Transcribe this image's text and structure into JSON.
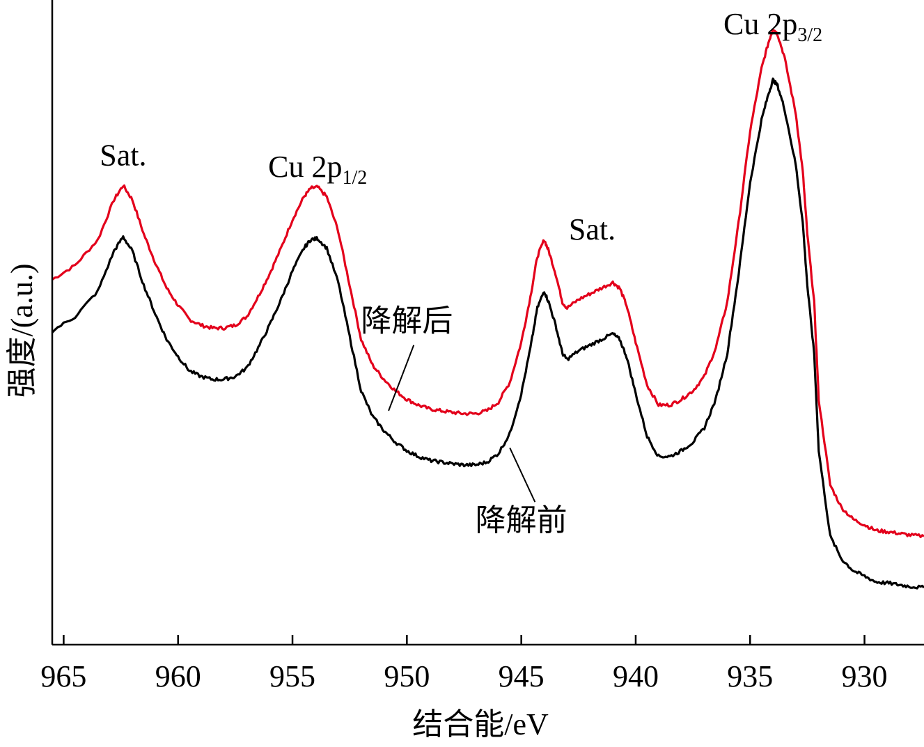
{
  "chart_data": {
    "type": "line",
    "xlabel": "结合能/eV",
    "ylabel": "强度/(a.u.)",
    "xlim": [
      965.5,
      927.4
    ],
    "ylim": [
      -0.05,
      1.08
    ],
    "x_reversed": true,
    "y_ticks_shown": false,
    "xticks": [
      965,
      960,
      955,
      950,
      945,
      940,
      935,
      930
    ],
    "xtick_labels": [
      "965",
      "960",
      "955",
      "950",
      "945",
      "940",
      "935",
      "930"
    ],
    "annotations": [
      {
        "text": "Sat.",
        "x": 962.4,
        "y": 0.79
      },
      {
        "text": "Cu 2p",
        "sub": "1/2",
        "x": 953.9,
        "y": 0.77
      },
      {
        "text": "Sat.",
        "x": 941.9,
        "y": 0.66
      },
      {
        "text": "Cu 2p",
        "sub": "3/2",
        "x": 934.0,
        "y": 1.02
      }
    ],
    "series": [
      {
        "name": "降解后",
        "color": "#e3001b",
        "label_x": 950.0,
        "label_y": 0.5,
        "pointer_from": [
          950.8,
          0.36
        ],
        "pointer_to": [
          949.7,
          0.475
        ],
        "x": [
          965.5,
          964.5,
          963.5,
          962.8,
          962.4,
          962.0,
          961.5,
          961.0,
          960.5,
          960.0,
          959.5,
          959.0,
          958.5,
          958.0,
          957.5,
          957.0,
          956.5,
          956.0,
          955.5,
          955.0,
          954.5,
          954.2,
          953.9,
          953.5,
          953.0,
          952.5,
          952.0,
          951.5,
          951.0,
          950.5,
          950.0,
          949.5,
          949.0,
          948.5,
          948.0,
          947.5,
          947.0,
          946.5,
          946.0,
          945.5,
          945.0,
          944.6,
          944.3,
          944.0,
          943.8,
          943.5,
          943.2,
          943.0,
          942.5,
          942.0,
          941.5,
          941.0,
          940.7,
          940.4,
          940.0,
          939.5,
          939.0,
          938.5,
          938.0,
          937.5,
          937.0,
          936.5,
          936.0,
          935.5,
          935.0,
          934.5,
          934.2,
          934.0,
          933.8,
          933.5,
          933.0,
          932.7,
          932.5,
          932.2,
          932.0,
          931.5,
          931.0,
          930.5,
          930.0,
          929.5,
          929.0,
          928.5,
          928.0,
          927.4
        ],
        "y": [
          0.59,
          0.615,
          0.66,
          0.73,
          0.755,
          0.73,
          0.67,
          0.62,
          0.575,
          0.545,
          0.52,
          0.51,
          0.505,
          0.505,
          0.51,
          0.525,
          0.56,
          0.6,
          0.645,
          0.695,
          0.735,
          0.75,
          0.752,
          0.735,
          0.675,
          0.58,
          0.485,
          0.44,
          0.415,
          0.395,
          0.38,
          0.37,
          0.363,
          0.36,
          0.357,
          0.355,
          0.355,
          0.36,
          0.375,
          0.41,
          0.48,
          0.56,
          0.63,
          0.66,
          0.64,
          0.6,
          0.55,
          0.54,
          0.555,
          0.565,
          0.575,
          0.585,
          0.575,
          0.545,
          0.48,
          0.405,
          0.37,
          0.37,
          0.38,
          0.395,
          0.42,
          0.47,
          0.55,
          0.69,
          0.85,
          0.96,
          1.005,
          1.03,
          1.02,
          0.98,
          0.88,
          0.78,
          0.67,
          0.55,
          0.38,
          0.23,
          0.19,
          0.17,
          0.16,
          0.15,
          0.148,
          0.145,
          0.142,
          0.14
        ]
      },
      {
        "name": "降解前",
        "color": "#000000",
        "label_x": 945.0,
        "label_y": 0.15,
        "pointer_from": [
          945.5,
          0.295
        ],
        "pointer_to": [
          944.4,
          0.2
        ],
        "x": [
          965.5,
          964.5,
          963.5,
          962.8,
          962.4,
          962.0,
          961.5,
          961.0,
          960.5,
          960.0,
          959.5,
          959.0,
          958.5,
          958.0,
          957.5,
          957.0,
          956.5,
          956.0,
          955.5,
          955.0,
          954.5,
          954.2,
          953.9,
          953.5,
          953.0,
          952.5,
          952.0,
          951.5,
          951.0,
          950.5,
          950.0,
          949.5,
          949.0,
          948.5,
          948.0,
          947.5,
          947.0,
          946.5,
          946.0,
          945.5,
          945.0,
          944.6,
          944.3,
          944.0,
          943.8,
          943.5,
          943.2,
          943.0,
          942.5,
          942.0,
          941.5,
          941.0,
          940.7,
          940.4,
          940.0,
          939.5,
          939.0,
          938.5,
          938.0,
          937.5,
          937.0,
          936.5,
          936.0,
          935.5,
          935.0,
          934.5,
          934.2,
          934.0,
          933.8,
          933.5,
          933.0,
          932.7,
          932.5,
          932.2,
          932.0,
          931.5,
          931.0,
          930.5,
          930.0,
          929.5,
          929.0,
          928.5,
          928.0,
          927.4
        ],
        "y": [
          0.5,
          0.525,
          0.57,
          0.64,
          0.665,
          0.64,
          0.58,
          0.53,
          0.485,
          0.455,
          0.43,
          0.42,
          0.415,
          0.415,
          0.42,
          0.435,
          0.47,
          0.51,
          0.555,
          0.605,
          0.645,
          0.66,
          0.662,
          0.645,
          0.585,
          0.49,
          0.395,
          0.35,
          0.325,
          0.305,
          0.29,
          0.28,
          0.273,
          0.27,
          0.267,
          0.265,
          0.265,
          0.27,
          0.285,
          0.32,
          0.39,
          0.47,
          0.54,
          0.57,
          0.55,
          0.51,
          0.46,
          0.45,
          0.465,
          0.475,
          0.485,
          0.495,
          0.485,
          0.455,
          0.39,
          0.315,
          0.28,
          0.28,
          0.29,
          0.305,
          0.33,
          0.38,
          0.46,
          0.6,
          0.76,
          0.87,
          0.915,
          0.94,
          0.93,
          0.89,
          0.79,
          0.69,
          0.58,
          0.46,
          0.29,
          0.14,
          0.1,
          0.08,
          0.07,
          0.06,
          0.058,
          0.055,
          0.052,
          0.05
        ]
      }
    ]
  }
}
